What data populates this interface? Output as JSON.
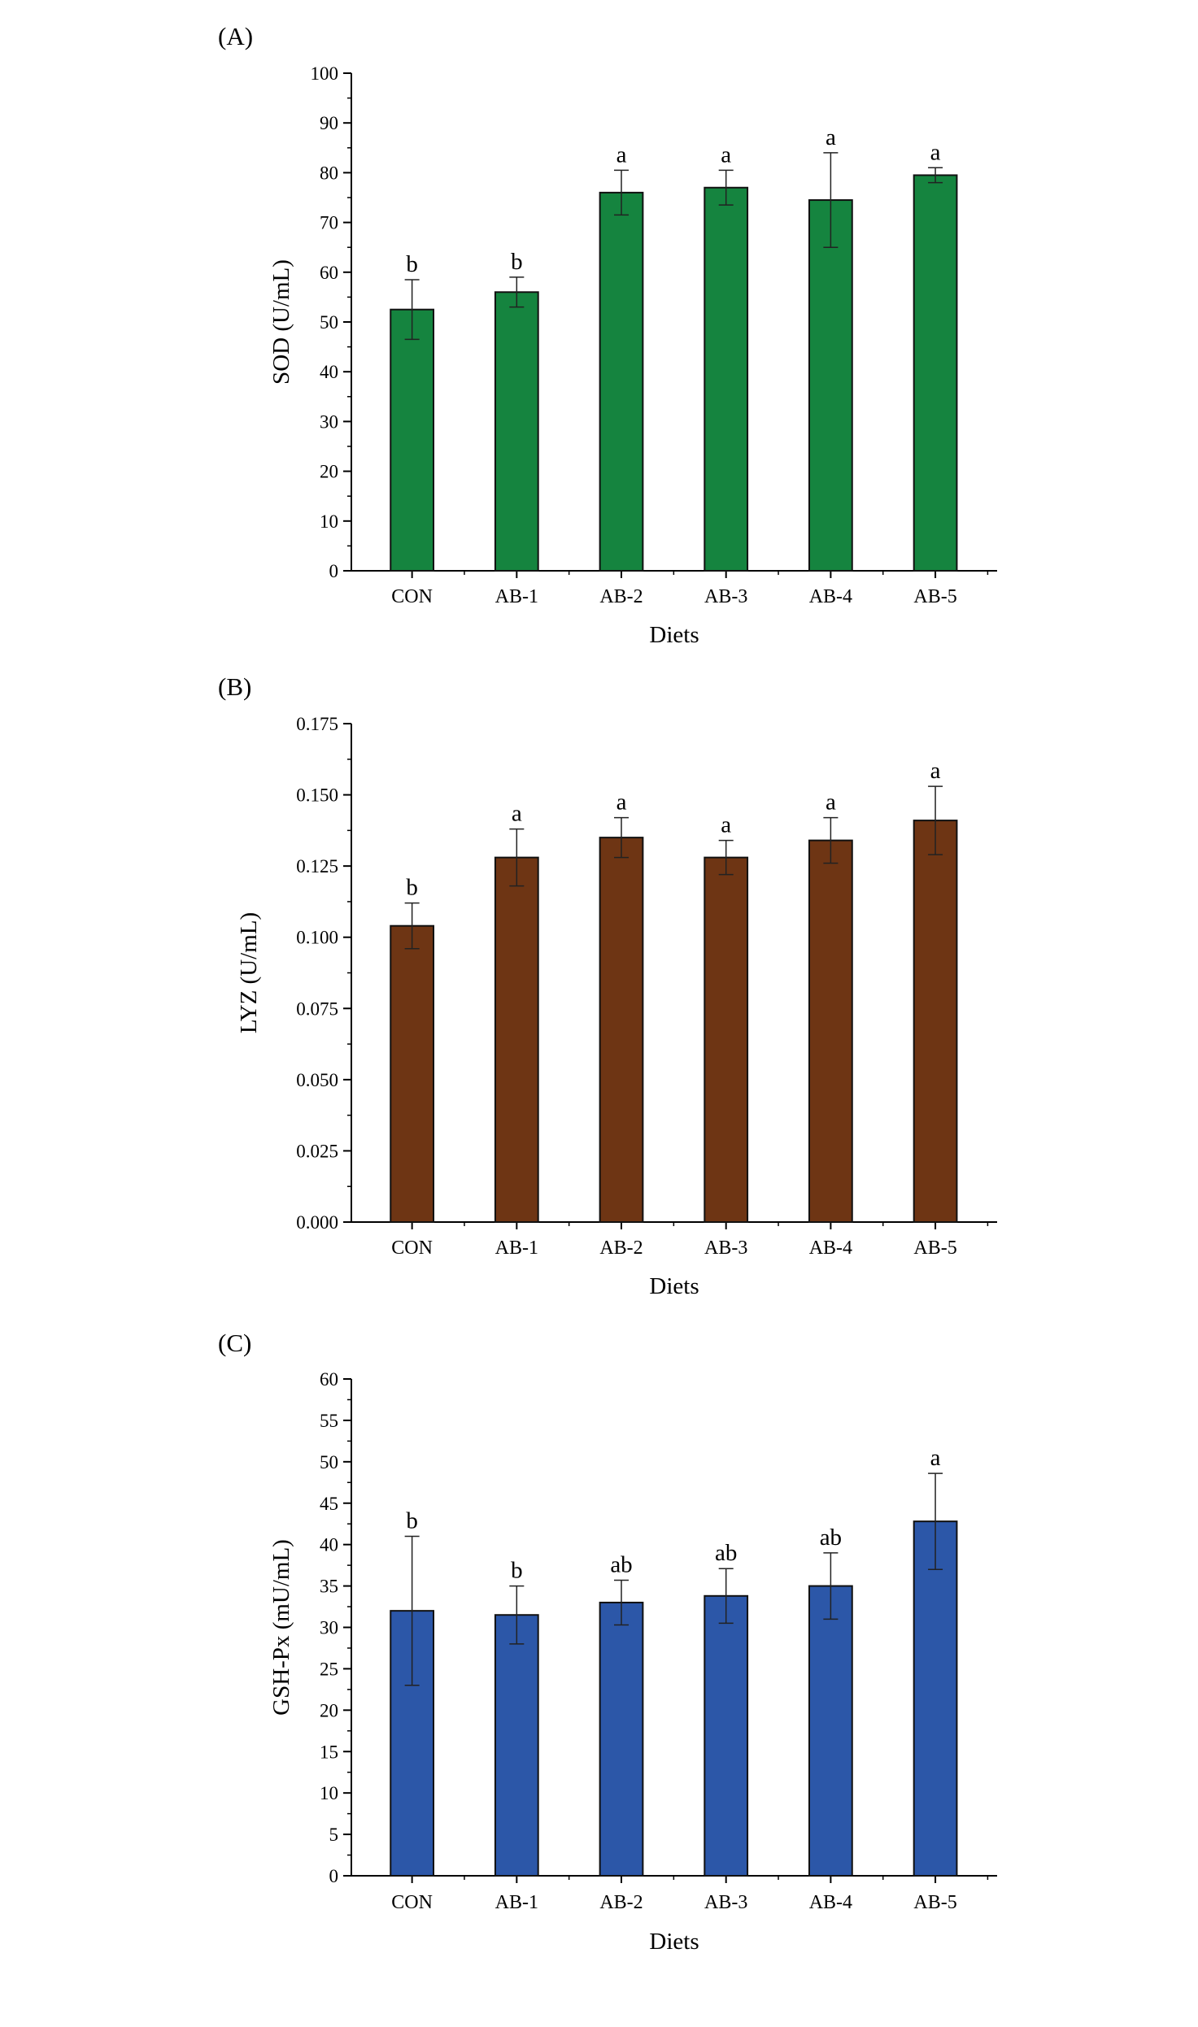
{
  "chart_data": [
    {
      "type": "bar",
      "panel_label": "(A)",
      "ylabel": "SOD (U/mL)",
      "xlabel": "Diets",
      "categories": [
        "CON",
        "AB-1",
        "AB-2",
        "AB-3",
        "AB-4",
        "AB-5"
      ],
      "values": [
        52.5,
        56,
        76,
        77,
        74.5,
        79.5
      ],
      "errors": [
        6,
        3,
        4.5,
        3.5,
        9.5,
        1.5
      ],
      "significance": [
        "b",
        "b",
        "a",
        "a",
        "a",
        "a"
      ],
      "ylim": [
        0,
        100
      ],
      "yticks": [
        "0",
        "10",
        "20",
        "30",
        "40",
        "50",
        "60",
        "70",
        "80",
        "90",
        "100"
      ],
      "color": "#15843F"
    },
    {
      "type": "bar",
      "panel_label": "(B)",
      "ylabel": "LYZ (U/mL)",
      "xlabel": "Diets",
      "categories": [
        "CON",
        "AB-1",
        "AB-2",
        "AB-3",
        "AB-4",
        "AB-5"
      ],
      "values": [
        0.104,
        0.128,
        0.135,
        0.128,
        0.134,
        0.141
      ],
      "errors": [
        0.008,
        0.01,
        0.007,
        0.006,
        0.008,
        0.012
      ],
      "significance": [
        "b",
        "a",
        "a",
        "a",
        "a",
        "a"
      ],
      "ylim": [
        0,
        0.175
      ],
      "yticks": [
        "0.000",
        "0.025",
        "0.050",
        "0.075",
        "0.100",
        "0.125",
        "0.150",
        "0.175"
      ],
      "color": "#6E3514"
    },
    {
      "type": "bar",
      "panel_label": "(C)",
      "ylabel": "GSH-Px (mU/mL)",
      "xlabel": "Diets",
      "categories": [
        "CON",
        "AB-1",
        "AB-2",
        "AB-3",
        "AB-4",
        "AB-5"
      ],
      "values": [
        32,
        31.5,
        33,
        33.8,
        35,
        42.8
      ],
      "errors": [
        9,
        3.5,
        2.7,
        3.3,
        4,
        5.8
      ],
      "significance": [
        "b",
        "b",
        "ab",
        "ab",
        "ab",
        "a"
      ],
      "ylim": [
        0,
        60
      ],
      "yticks": [
        "0",
        "5",
        "10",
        "15",
        "20",
        "25",
        "30",
        "35",
        "40",
        "45",
        "50",
        "55",
        "60"
      ],
      "color": "#2C57A8"
    }
  ]
}
